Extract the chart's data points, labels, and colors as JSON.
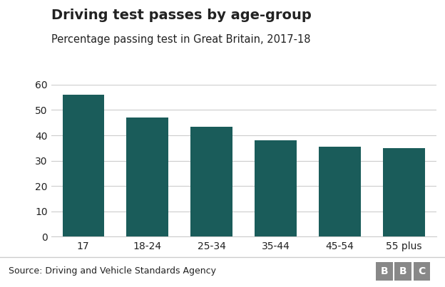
{
  "title": "Driving test passes by age-group",
  "subtitle": "Percentage passing test in Great Britain, 2017-18",
  "categories": [
    "17",
    "18-24",
    "25-34",
    "35-44",
    "45-54",
    "55 plus"
  ],
  "values": [
    56,
    47,
    43.5,
    38,
    35.5,
    35
  ],
  "bar_color": "#1a5c5a",
  "ylim": [
    0,
    60
  ],
  "yticks": [
    0,
    10,
    20,
    30,
    40,
    50,
    60
  ],
  "source": "Source: Driving and Vehicle Standards Agency",
  "bbc_label": "BBC",
  "background_color": "#ffffff",
  "title_fontsize": 14,
  "subtitle_fontsize": 10.5,
  "tick_fontsize": 10,
  "source_fontsize": 9,
  "separator_color": "#cccccc",
  "text_color": "#222222"
}
